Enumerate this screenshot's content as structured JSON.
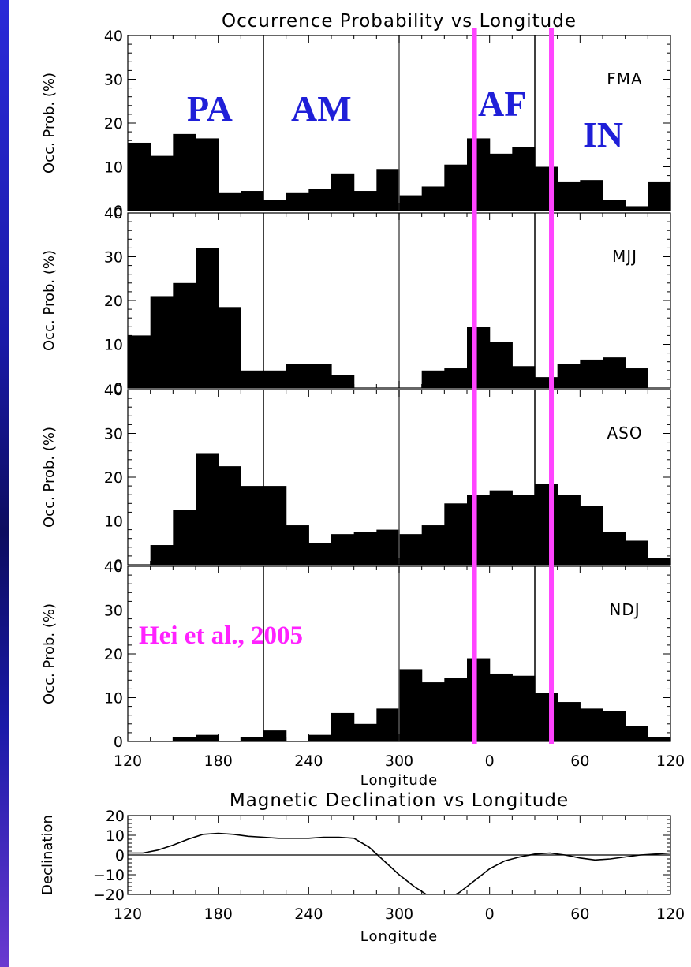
{
  "chart_data": [
    {
      "type": "bar",
      "title": "Occurrence Probability vs Longitude",
      "xlabel": "Longitude",
      "ylabel": "Occ. Prob. (%)",
      "ylim": [
        0,
        40
      ],
      "yticks": [
        "0",
        "10",
        "20",
        "30",
        "40"
      ],
      "xtick_labels": [
        "120",
        "180",
        "240",
        "300",
        "0",
        "60",
        "120"
      ],
      "bin_width_deg": 15,
      "bin_start_longitudes": [
        120,
        135,
        150,
        165,
        180,
        195,
        210,
        225,
        240,
        255,
        270,
        285,
        300,
        315,
        330,
        345,
        0,
        15,
        30,
        45,
        60,
        75,
        90,
        105
      ],
      "reference_lines": [
        210,
        300,
        30
      ],
      "highlight_lines": [
        350,
        41
      ],
      "highlight_color": "#ff44ff",
      "region_labels": [
        "PA",
        "AM",
        "AF",
        "IN"
      ],
      "region_color": "#1f1fd8",
      "annotation": "Hei et al., 2005",
      "annotation_color": "#ff22ff",
      "series": [
        {
          "name": "FMA",
          "values": [
            15.5,
            12.5,
            17.5,
            16.5,
            4.0,
            4.5,
            2.5,
            4.0,
            5.0,
            8.5,
            4.5,
            9.5,
            3.5,
            5.5,
            10.5,
            16.5,
            13.0,
            14.5,
            10.0,
            6.5,
            7.0,
            2.5,
            1.0,
            6.5
          ]
        },
        {
          "name": "MJJ",
          "values": [
            12.0,
            21.0,
            24.0,
            32.0,
            18.5,
            4.0,
            4.0,
            5.5,
            5.5,
            3.0,
            0,
            0,
            0,
            4.0,
            4.5,
            14.0,
            10.5,
            5.0,
            2.5,
            5.5,
            6.5,
            7.0,
            4.5,
            0
          ]
        },
        {
          "name": "ASO",
          "values": [
            0,
            4.5,
            12.5,
            25.5,
            22.5,
            18.0,
            18.0,
            9.0,
            5.0,
            7.0,
            7.5,
            8.0,
            7.0,
            9.0,
            14.0,
            16.0,
            17.0,
            16.0,
            18.5,
            16.0,
            13.5,
            7.5,
            5.5,
            1.5
          ]
        },
        {
          "name": "NDJ",
          "values": [
            0,
            0,
            1.0,
            1.5,
            0,
            1.0,
            2.5,
            0,
            1.5,
            6.5,
            4.0,
            7.5,
            16.5,
            13.5,
            14.5,
            19.0,
            15.5,
            15.0,
            11.0,
            9.0,
            7.5,
            7.0,
            3.5,
            1.0
          ]
        }
      ]
    },
    {
      "type": "line",
      "title": "Magnetic Declination vs Longitude",
      "xlabel": "Longitude",
      "ylabel": "Declination",
      "ylim": [
        -20,
        20
      ],
      "yticks": [
        "20",
        "10",
        "0",
        "−10",
        "−20"
      ],
      "xtick_labels": [
        "120",
        "180",
        "240",
        "300",
        "0",
        "60",
        "120"
      ],
      "x": [
        120,
        130,
        140,
        150,
        160,
        170,
        180,
        190,
        200,
        210,
        220,
        230,
        240,
        250,
        260,
        270,
        280,
        290,
        300,
        310,
        320,
        330,
        340,
        350,
        0,
        10,
        20,
        30,
        40,
        50,
        60,
        70,
        80,
        90,
        100,
        110,
        120
      ],
      "y": [
        1,
        1,
        2.5,
        5,
        8,
        10.5,
        11,
        10.5,
        9.5,
        9,
        8.5,
        8.5,
        8.5,
        9,
        9,
        8.5,
        4,
        -3,
        -10,
        -16,
        -21,
        -23,
        -19,
        -13,
        -7,
        -3,
        -1,
        0.5,
        1,
        0,
        -1.5,
        -2.5,
        -2,
        -1,
        0,
        0.5,
        1
      ]
    }
  ]
}
